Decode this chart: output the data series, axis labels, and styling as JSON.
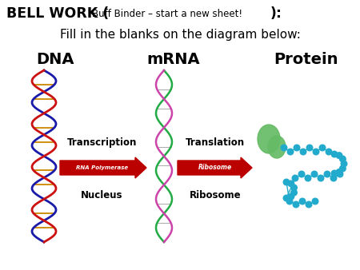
{
  "bg_color": "#ffffff",
  "title_bold1": "BELL WORK (",
  "title_normal": "Buff Binder – start a new sheet!",
  "title_bold2": "):",
  "title_line2": "Fill in the blanks on the diagram below:",
  "label_dna": "DNA",
  "label_mrna": "mRNA",
  "label_protein": "Protein",
  "label_transcription": "Transcription",
  "label_translation": "Translation",
  "label_nucleus": "Nucleus",
  "label_ribosome": "Ribosome",
  "label_rna_pol": "RNA Polymerase",
  "label_rib_arrow": "Ribosome",
  "arrow_color": "#bb0000",
  "dna_blue": "#1a1aaa",
  "dna_red": "#cc1111",
  "dna_rung_colors": [
    "#cc8800",
    "#cc8800",
    "#cc8800",
    "#cc8800"
  ],
  "mrna_green": "#22aa44",
  "mrna_pink": "#cc44aa",
  "protein_blob_color": "#66bb66",
  "chain_color": "#22aacc"
}
